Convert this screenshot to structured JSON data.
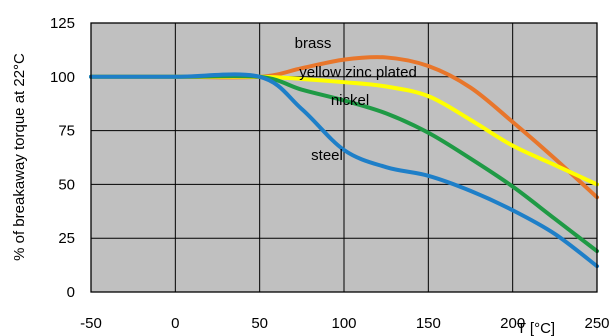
{
  "chart_data": {
    "type": "line",
    "title": "",
    "xlabel": "T [°C]",
    "ylabel": "% of breakaway torque at 22°C",
    "xlim": [
      -50,
      250
    ],
    "ylim": [
      0,
      125
    ],
    "x_ticks": [
      -50,
      0,
      50,
      100,
      150,
      200,
      250
    ],
    "y_ticks": [
      0,
      25,
      50,
      75,
      100,
      125
    ],
    "grid": true,
    "legend": "none (series labeled directly on curves)",
    "background_color": "#c0c0c0",
    "series": [
      {
        "name": "brass",
        "color": "#e8762b",
        "x": [
          -50,
          0,
          50,
          75,
          100,
          125,
          150,
          175,
          200,
          225,
          250
        ],
        "y": [
          100,
          100,
          100,
          104,
          108,
          109,
          105,
          95,
          79,
          62,
          44
        ]
      },
      {
        "name": "yellow zinc plated",
        "color": "#ffff00",
        "x": [
          -50,
          0,
          50,
          75,
          100,
          125,
          150,
          175,
          200,
          225,
          250
        ],
        "y": [
          100,
          100,
          100,
          99,
          97.5,
          95.5,
          91,
          80,
          68,
          59,
          50
        ]
      },
      {
        "name": "nickel",
        "color": "#1f9a45",
        "x": [
          -50,
          0,
          50,
          75,
          100,
          125,
          150,
          175,
          200,
          225,
          250
        ],
        "y": [
          100,
          100,
          100,
          94,
          89,
          83,
          74,
          62,
          49,
          34,
          19
        ]
      },
      {
        "name": "steel",
        "color": "#1e7fc8",
        "x": [
          -50,
          0,
          50,
          75,
          100,
          125,
          150,
          175,
          200,
          225,
          250
        ],
        "y": [
          100,
          100,
          100,
          85,
          66,
          58,
          54,
          47,
          38,
          27,
          12
        ]
      }
    ]
  }
}
